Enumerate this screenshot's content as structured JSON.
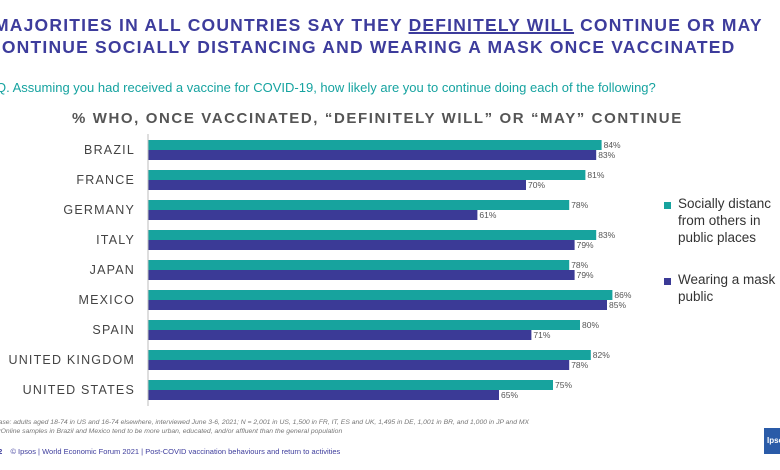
{
  "header": {
    "title_line1_pre": "MAJORITIES IN ALL COUNTRIES SAY THEY ",
    "title_line1_em": "DEFINITELY WILL",
    "title_line1_post": " CONTINUE OR MAY",
    "title_line2": "CONTINUE SOCIALLY DISTANCING AND WEARING A MASK ONCE VACCINATED",
    "question": "Q. Assuming you had received a vaccine for COVID-19, how likely are you to continue doing each of the following?"
  },
  "chart_data": {
    "type": "bar",
    "orientation": "horizontal",
    "title": "% WHO, ONCE VACCINATED, “DEFINITELY WILL” OR “MAY” CONTINUE",
    "categories": [
      "BRAZIL",
      "FRANCE",
      "GERMANY",
      "ITALY",
      "JAPAN",
      "MEXICO",
      "SPAIN",
      "UNITED KINGDOM",
      "UNITED STATES"
    ],
    "series": [
      {
        "name": "Socially distance from others in public places",
        "color": "#17a39e",
        "values": [
          84,
          81,
          78,
          83,
          78,
          86,
          80,
          82,
          75
        ]
      },
      {
        "name": "Wearing a mask in public",
        "color": "#3b3a96",
        "values": [
          83,
          70,
          61,
          79,
          79,
          85,
          71,
          78,
          65
        ]
      }
    ],
    "value_suffix": "%",
    "xlim": [
      0,
      100
    ],
    "grid": false,
    "legend_position": "right"
  },
  "legend": {
    "items": [
      {
        "label": "Socially distanc\nfrom others in\npublic places",
        "color": "#17a39e"
      },
      {
        "label": "Wearing a mask\npublic",
        "color": "#3b3a96"
      }
    ]
  },
  "footnote": {
    "line1": "Base: adults aged 18-74 in US and 16-74 elsewhere, interviewed June 3-6, 2021; N = 2,001 in US, 1,500 in FR, IT, ES and UK, 1,495 in DE, 1,001 in BR, and 1,000 in JP and MX",
    "line2": "*Online samples in Brazil and Mexico tend to be more urban, educated, and/or affluent than the general population"
  },
  "footer": {
    "page": "12",
    "text": "© Ipsos | World Economic Forum 2021 | Post-COVID vaccination behaviours and return to activities",
    "logo": "Ipsos"
  }
}
